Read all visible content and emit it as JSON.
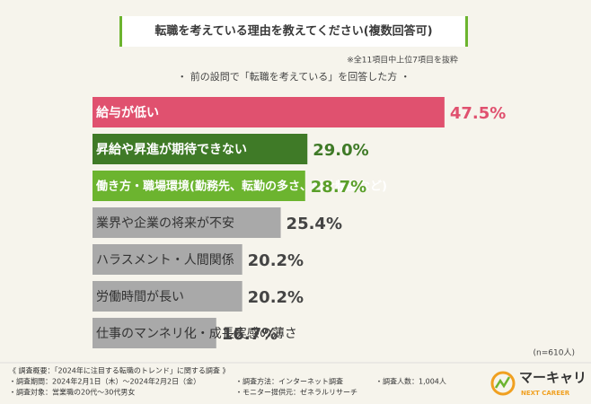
{
  "chart_data": {
    "type": "bar",
    "orientation": "horizontal",
    "title": "転職を考えている理由を教えてください(複数回答可)",
    "note": "※全11項目中上位7項目を抜粋",
    "subtitle": "・ 前の設問で「転職を考えている」を回答した方 ・",
    "sample": "(n=610人)",
    "categories": [
      "給与が低い",
      "昇給や昇進が期待できない",
      "働き方・職場環境(勤務先、転勤の多さ、出社頻度など)",
      "業界や企業の将来が不安",
      "ハラスメント・人間関係",
      "労働時間が長い",
      "仕事のマンネリ化・成長実感の薄さ"
    ],
    "values": [
      47.5,
      29.0,
      28.7,
      25.4,
      20.2,
      20.2,
      16.7
    ],
    "value_labels": [
      "47.5%",
      "29.0%",
      "28.7%",
      "25.4%",
      "20.2%",
      "20.2%",
      "16.7%"
    ],
    "colors": [
      "#e0516f",
      "#3f7a27",
      "#6cb42f",
      "#a9a9a9",
      "#a9a9a9",
      "#a9a9a9",
      "#a9a9a9"
    ],
    "label_colors": [
      "#e0516f",
      "#3f7a27",
      "#5a9f2a",
      "#444444",
      "#444444",
      "#444444",
      "#444444"
    ]
  },
  "footer": {
    "heading": "《 調査概要：「2024年に注目する転職のトレンド」に関する調査 》",
    "items": [
      "・調査期間：2024年2月1日（木）～2024年2月2日（金）",
      "・調査対象：営業職の20代～30代男女",
      "・調査方法：インターネット調査",
      "・モニター提供元：ゼネラルリサーチ",
      "・調査人数：1,004人"
    ]
  },
  "logo": {
    "name": "マーキャリ",
    "tagline": "NEXT CAREER"
  }
}
